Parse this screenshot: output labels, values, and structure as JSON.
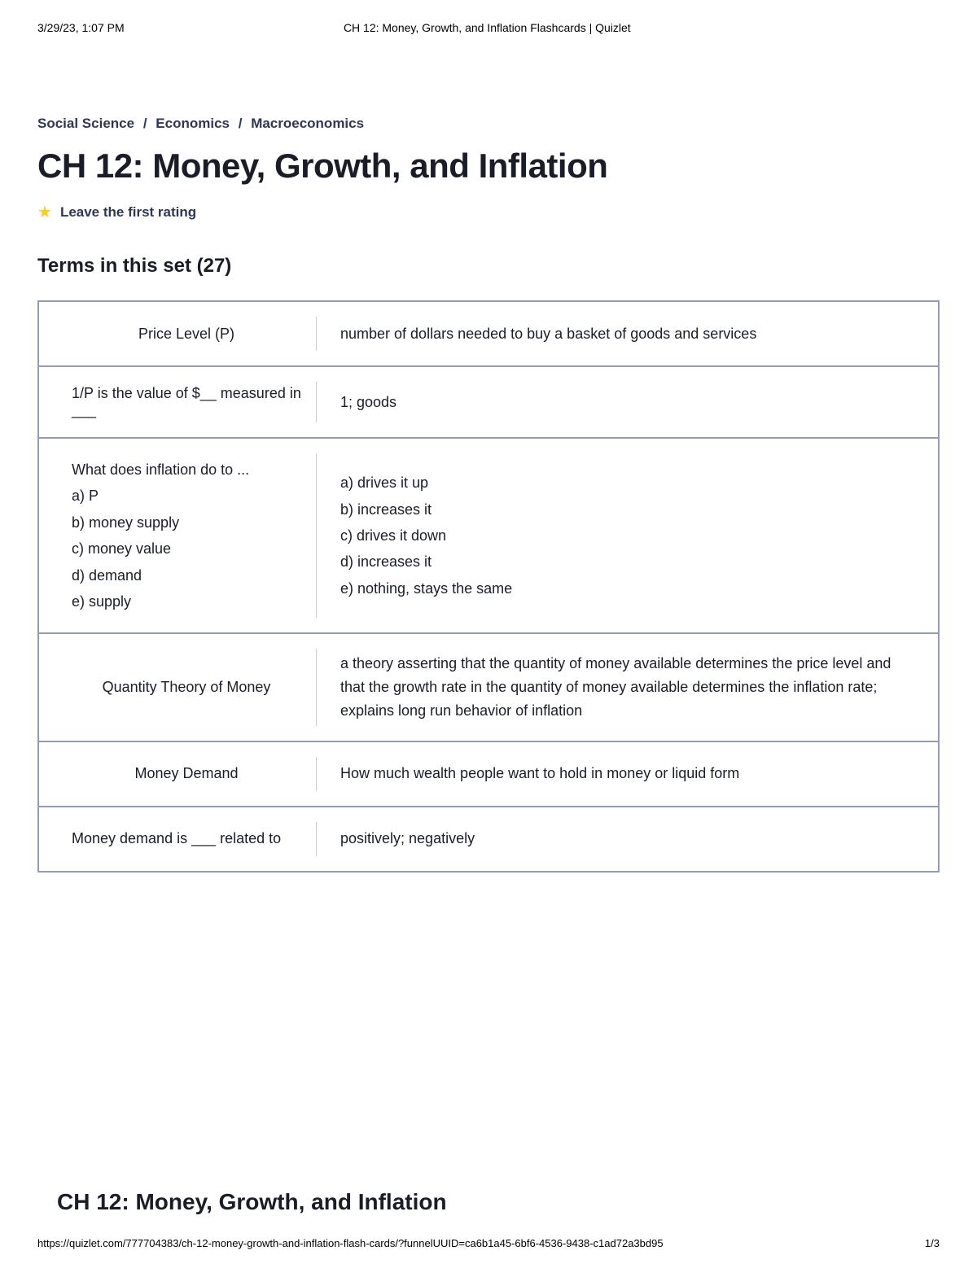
{
  "print": {
    "timestamp": "3/29/23, 1:07 PM",
    "doc_title": "CH 12: Money, Growth, and Inflation Flashcards | Quizlet",
    "url": "https://quizlet.com/777704383/ch-12-money-growth-and-inflation-flash-cards/?funnelUUID=ca6b1a45-6bf6-4536-9438-c1ad72a3bd95",
    "page": "1/3"
  },
  "breadcrumb": {
    "level1": "Social Science",
    "level2": "Economics",
    "level3": "Macroeconomics",
    "sep": "/"
  },
  "page_title": "CH 12: Money, Growth, and Inflation",
  "rating": {
    "label": "Leave the first rating"
  },
  "terms_heading": "Terms in this set (27)",
  "footer_title": "CH 12: Money, Growth, and Inflation",
  "rows": [
    {
      "term": "Price Level (P)",
      "term_center": true,
      "definition": "number of dollars needed to buy a basket of goods and services"
    },
    {
      "term": "1/P is the value of $__ measured in ___",
      "term_center": false,
      "definition": "1; goods"
    },
    {
      "term": "What does inflation do to ...\na) P\nb) money supply\nc) money value\nd) demand\ne) supply",
      "term_center": false,
      "term_multiline": true,
      "definition": "a) drives it up\nb) increases it\nc) drives it down\nd) increases it\ne) nothing, stays the same",
      "def_multiline": true
    },
    {
      "term": "Quantity Theory of Money",
      "term_center": true,
      "definition": "a theory asserting that the quantity of money available determines the price level and that the growth rate in the quantity of money available determines the inflation rate; explains long run behavior of inflation"
    },
    {
      "term": "Money Demand",
      "term_center": true,
      "definition": "How much wealth people want to hold in money or liquid form"
    },
    {
      "term": "Money demand is ___ related to",
      "term_center": false,
      "definition": "positively; negatively"
    }
  ],
  "colors": {
    "breadcrumb": "#2e3856",
    "heading": "#1a1d28",
    "star": "#ffcd1f",
    "border": "#939bb4",
    "divider": "#c7cbd6",
    "background": "#ffffff"
  }
}
